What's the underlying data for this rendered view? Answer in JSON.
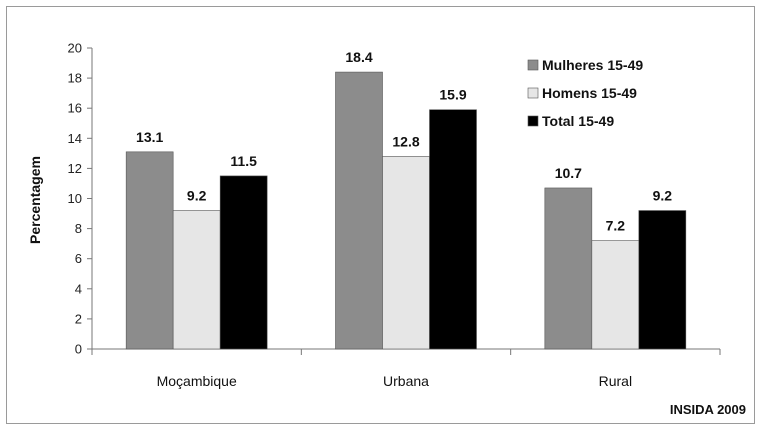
{
  "chart_data": {
    "type": "bar",
    "ylabel": "Percentagem",
    "ylim": [
      0,
      20
    ],
    "yticks": [
      0,
      2,
      4,
      6,
      8,
      10,
      12,
      14,
      16,
      18,
      20
    ],
    "categories": [
      "Moçambique",
      "Urbana",
      "Rural"
    ],
    "series": [
      {
        "name": "Mulheres 15-49",
        "color": "#8c8c8c",
        "values": [
          13.1,
          18.4,
          10.7
        ]
      },
      {
        "name": "Homens 15-49",
        "color": "#e6e6e6",
        "values": [
          9.2,
          12.8,
          7.2
        ]
      },
      {
        "name": "Total 15-49",
        "color": "#000000",
        "values": [
          11.5,
          15.9,
          9.2
        ]
      }
    ],
    "data_labels": true,
    "grid": false,
    "legend_position": "top-right",
    "source": "INSIDA 2009"
  }
}
